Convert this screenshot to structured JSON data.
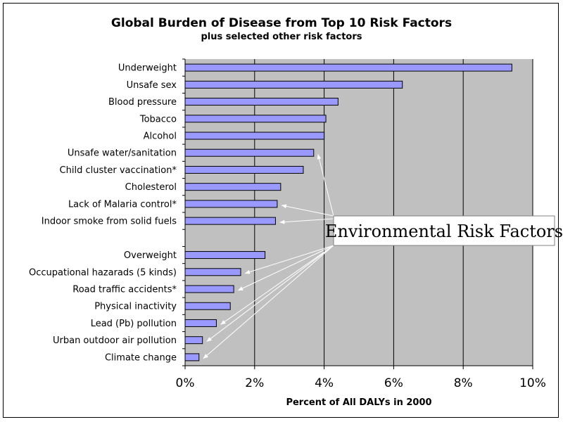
{
  "chart_data": {
    "type": "bar",
    "orientation": "horizontal",
    "title": "Global Burden of Disease from Top 10 Risk Factors",
    "subtitle": "plus selected other risk factors",
    "xlabel": "Percent of All DALYs in 2000",
    "xlim": [
      0,
      10
    ],
    "x_ticks": [
      "0%",
      "2%",
      "4%",
      "6%",
      "8%",
      "10%"
    ],
    "grid": "vertical gridlines",
    "colors": {
      "bar": "#9999ff",
      "plot_bg": "#c0c0c0",
      "bar_edge": "#000000"
    },
    "categories": [
      "Underweight",
      "Unsafe sex",
      "Blood pressure",
      "Tobacco",
      "Alcohol",
      "Unsafe water/sanitation",
      "Child cluster vaccination*",
      "Cholesterol",
      "Lack of Malaria control*",
      "Indoor smoke from solid fuels",
      "",
      "Overweight",
      "Occupational hazarads (5 kinds)",
      "Road traffic accidents*",
      "Physical inactivity",
      "Lead (Pb) pollution",
      "Urban outdoor air pollution",
      "Climate change"
    ],
    "values": [
      9.4,
      6.25,
      4.4,
      4.05,
      4.0,
      3.7,
      3.4,
      2.75,
      2.65,
      2.6,
      null,
      2.3,
      1.6,
      1.4,
      1.3,
      0.9,
      0.5,
      0.4
    ],
    "annotations": [
      {
        "text": "Environmental Risk Factors",
        "points_to": [
          "Unsafe water/sanitation",
          "Lack of Malaria control*",
          "Indoor smoke from solid fuels",
          "Occupational hazarads (5 kinds)",
          "Road traffic accidents*",
          "Lead (Pb) pollution",
          "Urban outdoor air pollution",
          "Climate change"
        ]
      }
    ]
  }
}
